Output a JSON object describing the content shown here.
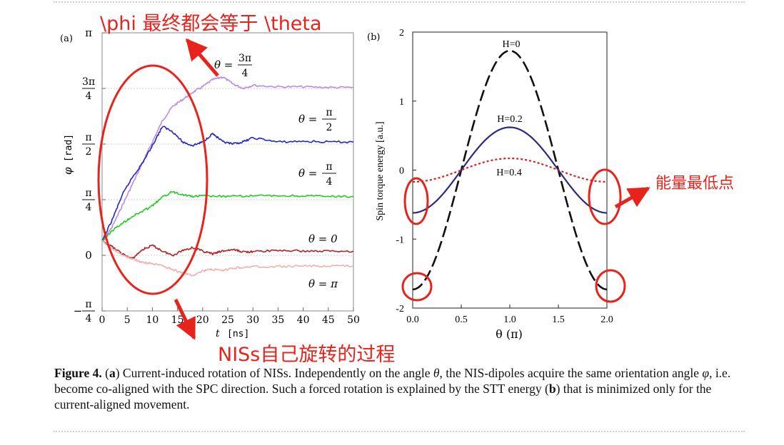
{
  "figure": {
    "caption_label": "Figure 4.",
    "caption_a_ref": "a",
    "caption_a_text": " Current-induced rotation of NISs. Independently on the angle ",
    "caption_theta": "θ",
    "caption_mid": ", the NIS-dipoles acquire the same orientation angle ",
    "caption_phi": "φ",
    "caption_mid2": ", i.e. become co-aligned with the SPC direction. Such a forced rotation is explained by the STT energy (",
    "caption_b_ref": "b",
    "caption_end": ") that is minimized only for the current-aligned movement."
  },
  "annotations": {
    "top": "\\phi 最终都会等于 \\theta",
    "bottom": "NISs自己旋转的过程",
    "right": "能量最低点",
    "color": "#e8231c"
  },
  "chart_data": [
    {
      "panel": "a",
      "type": "line",
      "panel_label": "(a)",
      "xlabel_var": "t",
      "xlabel_unit": "[ns]",
      "ylabel_var": "φ",
      "ylabel_unit": "[rad]",
      "xlim": [
        0,
        50
      ],
      "ylim": [
        -0.785,
        3.1416
      ],
      "xticks": [
        0,
        5,
        10,
        15,
        20,
        25,
        30,
        35,
        40,
        45,
        50
      ],
      "yticks": [
        {
          "value": 3.1416,
          "label": "π"
        },
        {
          "value": 2.3562,
          "num": "3π",
          "den": "4"
        },
        {
          "value": 1.5708,
          "num": "π",
          "den": "2"
        },
        {
          "value": 0.7854,
          "num": "π",
          "den": "4"
        },
        {
          "value": 0,
          "label": "0"
        },
        {
          "value": -0.7854,
          "num": "π",
          "den": "4",
          "minus": "−"
        }
      ],
      "series": [
        {
          "name": "θ = 3π/4",
          "color": "#b98be6",
          "x": [
            0,
            2,
            4,
            6,
            8,
            10,
            12,
            14,
            16,
            18,
            20,
            22,
            24,
            26,
            28,
            30,
            35,
            40,
            45,
            50
          ],
          "y": [
            0.2,
            0.4,
            0.7,
            1.0,
            1.3,
            1.6,
            1.9,
            2.1,
            2.2,
            2.3,
            2.38,
            2.48,
            2.52,
            2.42,
            2.36,
            2.4,
            2.38,
            2.38,
            2.37,
            2.37
          ]
        },
        {
          "name": "θ = π/2",
          "color": "#2228c0",
          "x": [
            0,
            2,
            4,
            6,
            8,
            10,
            12,
            14,
            16,
            18,
            20,
            22,
            24,
            26,
            28,
            30,
            35,
            40,
            45,
            50
          ],
          "y": [
            0.2,
            0.5,
            0.85,
            1.1,
            1.3,
            1.55,
            1.82,
            1.75,
            1.6,
            1.55,
            1.6,
            1.72,
            1.6,
            1.57,
            1.6,
            1.66,
            1.6,
            1.61,
            1.6,
            1.6
          ]
        },
        {
          "name": "θ = π/4",
          "color": "#22cc22",
          "x": [
            0,
            2,
            4,
            6,
            8,
            10,
            12,
            14,
            16,
            18,
            20,
            25,
            30,
            35,
            40,
            45,
            50
          ],
          "y": [
            0.2,
            0.35,
            0.45,
            0.55,
            0.62,
            0.7,
            0.82,
            0.9,
            0.86,
            0.83,
            0.84,
            0.83,
            0.84,
            0.84,
            0.84,
            0.83,
            0.83
          ]
        },
        {
          "name": "θ = 0",
          "color": "#b22222",
          "x": [
            0,
            2,
            4,
            6,
            8,
            10,
            12,
            14,
            16,
            18,
            20,
            22,
            24,
            26,
            28,
            30,
            35,
            40,
            45,
            50
          ],
          "y": [
            0.2,
            0.12,
            0.02,
            -0.05,
            0.08,
            0.14,
            0.06,
            0.0,
            0.07,
            0.11,
            0.06,
            0.02,
            0.06,
            0.08,
            0.05,
            0.05,
            0.07,
            0.06,
            0.06,
            0.06
          ]
        },
        {
          "name": "θ = π",
          "color": "#f0b0b0",
          "x": [
            0,
            2,
            4,
            6,
            8,
            10,
            12,
            14,
            16,
            18,
            20,
            22,
            24,
            26,
            28,
            30,
            35,
            40,
            45,
            50
          ],
          "y": [
            0.2,
            0.1,
            0.0,
            -0.05,
            -0.1,
            -0.12,
            -0.15,
            -0.2,
            -0.25,
            -0.28,
            -0.22,
            -0.2,
            -0.22,
            -0.18,
            -0.17,
            -0.16,
            -0.16,
            -0.15,
            -0.15,
            -0.15
          ]
        }
      ],
      "labels": [
        {
          "t": "θ = ",
          "num": "3π",
          "den": "4"
        },
        {
          "t": "θ = ",
          "num": "π",
          "den": "2"
        },
        {
          "t": "θ = ",
          "num": "π",
          "den": "4"
        },
        {
          "t": "θ = 0"
        },
        {
          "t": "θ = π"
        }
      ]
    },
    {
      "panel": "b",
      "type": "line",
      "panel_label": "(b)",
      "xlabel": "θ (π)",
      "ylabel": "Spin torque energy [a.u.]",
      "xlim": [
        0,
        2
      ],
      "ylim": [
        -2,
        2
      ],
      "xticks": [
        "0.0",
        "0.5",
        "1.0",
        "1.5",
        "2.0"
      ],
      "yticks": [
        "2",
        "1",
        "0",
        "-1",
        "-2"
      ],
      "series": [
        {
          "name": "H=0",
          "color": "#111111",
          "dash": "dashed",
          "amplitude": 1.73
        },
        {
          "name": "H=0.2",
          "color": "#2b2a7e",
          "dash": "solid",
          "amplitude": 0.62
        },
        {
          "name": "H=0.4",
          "color": "#d42020",
          "dash": "dotted",
          "amplitude": 0.17
        }
      ]
    }
  ]
}
